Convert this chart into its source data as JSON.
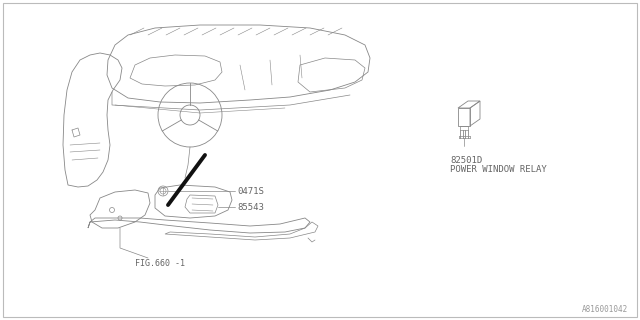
{
  "bg_color": "#ffffff",
  "border_color": "#bbbbbb",
  "line_color": "#888888",
  "text_color": "#666666",
  "part_label_0471S": "0471S",
  "part_label_85543": "85543",
  "part_label_fig": "FIG.660 -1",
  "part_label_relay_num": "82501D",
  "part_label_relay_name": "POWER WINDOW RELAY",
  "watermark": "A816001042",
  "fig_size": [
    6.4,
    3.2
  ],
  "dpi": 100
}
